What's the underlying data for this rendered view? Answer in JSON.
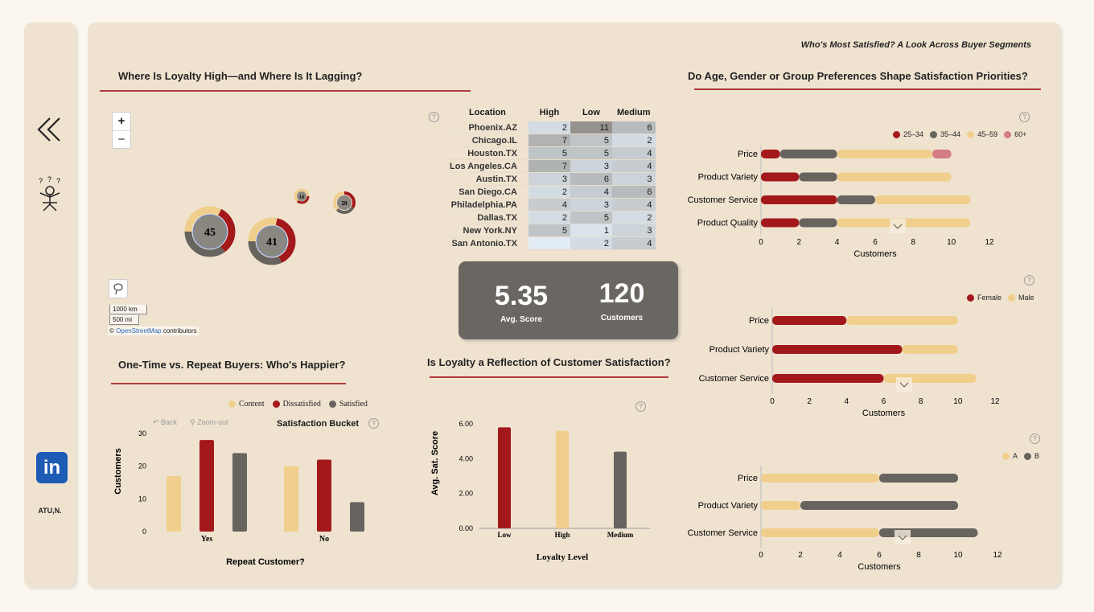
{
  "page_title": "Who's Most Satisfied? A Look Across Buyer Segments",
  "sidebar": {
    "author": "ATU,N."
  },
  "map": {
    "title": "Where Is Loyalty High—and Where Is It Lagging?",
    "zoom_in": "+",
    "zoom_out": "−",
    "scale_km": "1000 km",
    "scale_mi": "500 mi",
    "attribution_prefix": "©",
    "attribution_link": "OpenStreetMap",
    "attribution_suffix": "contributors",
    "bubbles": [
      {
        "label": "45"
      },
      {
        "label": "41"
      },
      {
        "label": "14"
      },
      {
        "label": "20"
      }
    ]
  },
  "location_table": {
    "headers": [
      "Location",
      "High",
      "Low",
      "Medium"
    ],
    "rows": [
      {
        "location": "Phoenix.AZ",
        "high": "2",
        "low": "11",
        "medium": "6"
      },
      {
        "location": "Chicago.IL",
        "high": "7",
        "low": "5",
        "medium": "2"
      },
      {
        "location": "Houston.TX",
        "high": "5",
        "low": "5",
        "medium": "4"
      },
      {
        "location": "Los Angeles.CA",
        "high": "7",
        "low": "3",
        "medium": "4"
      },
      {
        "location": "Austin.TX",
        "high": "3",
        "low": "6",
        "medium": "3"
      },
      {
        "location": "San Diego.CA",
        "high": "2",
        "low": "4",
        "medium": "6"
      },
      {
        "location": "Philadelphia.PA",
        "high": "4",
        "low": "3",
        "medium": "4"
      },
      {
        "location": "Dallas.TX",
        "high": "2",
        "low": "5",
        "medium": "2"
      },
      {
        "location": "New York.NY",
        "high": "5",
        "low": "1",
        "medium": "3"
      },
      {
        "location": "San Antonio.TX",
        "high": "",
        "low": "2",
        "medium": "4"
      }
    ]
  },
  "kpi": {
    "score": "5.35",
    "score_label": "Avg. Score",
    "customers": "120",
    "customers_label": "Customers"
  },
  "repeat": {
    "title": "One-Time vs. Repeat Buyers: Who's Happier?",
    "back": "Back",
    "zoom_out": "Zoom-out",
    "legend_title": "Satisfaction Bucket"
  },
  "loyalty": {
    "title": "Is Loyalty a Reflection of Customer Satisfaction?"
  },
  "prefs": {
    "title": "Do Age, Gender or Group Preferences Shape Satisfaction Priorities?"
  },
  "colors": {
    "red": "#a3181b",
    "gray": "#67635e",
    "cream": "#f0cf8c",
    "pink": "#d57b83"
  },
  "chart_data": [
    {
      "type": "bar",
      "id": "repeat",
      "categories": [
        "Yes",
        "No"
      ],
      "series": [
        {
          "name": "Content",
          "values": [
            17,
            20
          ]
        },
        {
          "name": "Dissatisfied",
          "values": [
            28,
            22
          ]
        },
        {
          "name": "Satisfied",
          "values": [
            24,
            9
          ]
        }
      ],
      "xlabel": "Repeat Customer?",
      "ylabel": "Customers",
      "ylim": [
        0,
        30
      ],
      "yticks": [
        "0",
        "10",
        "20",
        "30"
      ],
      "legend": "top-right"
    },
    {
      "type": "bar",
      "id": "loyalty",
      "categories": [
        "Low",
        "High",
        "Medium"
      ],
      "values": [
        5.8,
        5.6,
        4.4
      ],
      "xlabel": "Loyalty Level",
      "ylabel": "Avg. Sat. Score",
      "ylim": [
        0,
        6
      ],
      "yticks": [
        "0.00",
        "2.00",
        "4.00",
        "6.00"
      ]
    },
    {
      "type": "bar",
      "id": "age",
      "orientation": "horizontal-stacked",
      "categories": [
        "Price",
        "Product Variety",
        "Customer Service",
        "Product Quality"
      ],
      "series": [
        {
          "name": "25–34",
          "values": [
            1,
            2,
            4,
            2
          ]
        },
        {
          "name": "35–44",
          "values": [
            3,
            2,
            2,
            2
          ]
        },
        {
          "name": "45–59",
          "values": [
            5,
            6,
            5,
            7
          ]
        },
        {
          "name": "60+",
          "values": [
            1,
            0,
            0,
            0
          ]
        }
      ],
      "xlabel": "Customers",
      "xlim": [
        0,
        12
      ],
      "xticks": [
        "0",
        "2",
        "4",
        "6",
        "8",
        "10",
        "12"
      ],
      "legend": "top-right"
    },
    {
      "type": "bar",
      "id": "gender",
      "orientation": "horizontal-stacked",
      "categories": [
        "Price",
        "Product Variety",
        "Customer Service"
      ],
      "series": [
        {
          "name": "Female",
          "values": [
            4,
            7,
            6
          ]
        },
        {
          "name": "Male",
          "values": [
            6,
            3,
            5
          ]
        }
      ],
      "xlabel": "Customers",
      "xlim": [
        0,
        12
      ],
      "xticks": [
        "0",
        "2",
        "4",
        "6",
        "8",
        "10",
        "12"
      ],
      "legend": "top-right"
    },
    {
      "type": "bar",
      "id": "group",
      "orientation": "horizontal-stacked",
      "categories": [
        "Price",
        "Product Variety",
        "Customer Service"
      ],
      "series": [
        {
          "name": "A",
          "values": [
            6,
            2,
            6
          ]
        },
        {
          "name": "B",
          "values": [
            4,
            8,
            5
          ]
        }
      ],
      "xlabel": "Customers",
      "xlim": [
        0,
        12
      ],
      "xticks": [
        "0",
        "2",
        "4",
        "6",
        "8",
        "10",
        "12"
      ],
      "legend": "top-right"
    }
  ]
}
